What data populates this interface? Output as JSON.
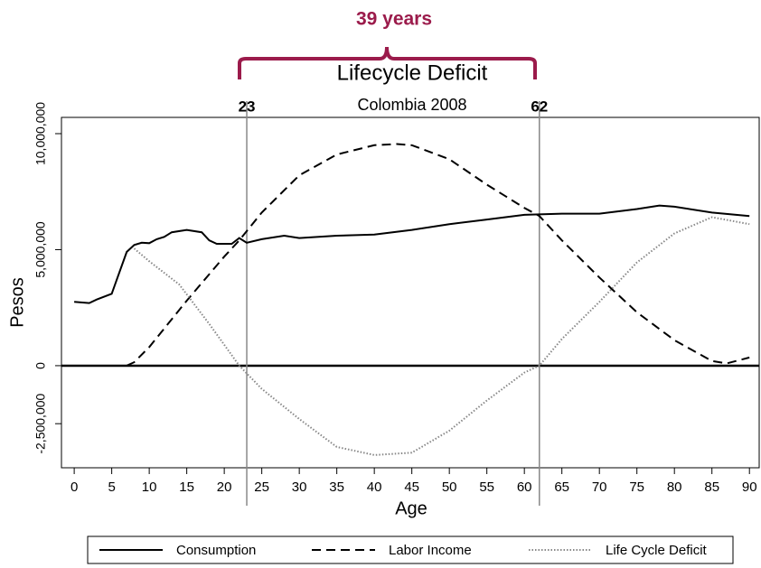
{
  "chart_data": {
    "type": "line",
    "title": "Lifecycle Deficit",
    "subtitle": "Colombia 2008",
    "annotation": "39 years",
    "annotation_color": "#9b1b4b",
    "vlines": [
      23,
      62
    ],
    "x_label": "Age",
    "y_label": "Pesos",
    "xlim": [
      -1.7,
      91.3
    ],
    "xticks": [
      0,
      5,
      10,
      15,
      20,
      25,
      30,
      35,
      40,
      45,
      50,
      55,
      60,
      65,
      70,
      75,
      80,
      85,
      90
    ],
    "ylim": [
      -4400000,
      10700000
    ],
    "yticks": [
      {
        "value": -2500000,
        "label": "-2,500,000"
      },
      0,
      {
        "value": 5000000,
        "label": "5,000,000"
      },
      {
        "value": 10000000,
        "label": "10,000,000"
      }
    ],
    "series": [
      {
        "name": "Consumption",
        "color": "#000000",
        "dash": "solid",
        "x": [
          0,
          2,
          3,
          5,
          7,
          8,
          9,
          10,
          11,
          12,
          13,
          15,
          17,
          18,
          19,
          21,
          22,
          23,
          25,
          28,
          30,
          35,
          40,
          45,
          50,
          55,
          60,
          65,
          70,
          75,
          78,
          80,
          85,
          90
        ],
        "values": [
          2750000,
          2700000,
          2850000,
          3100000,
          4900000,
          5200000,
          5300000,
          5280000,
          5450000,
          5550000,
          5750000,
          5850000,
          5750000,
          5400000,
          5250000,
          5250000,
          5500000,
          5300000,
          5450000,
          5600000,
          5500000,
          5600000,
          5650000,
          5850000,
          6100000,
          6300000,
          6500000,
          6550000,
          6550000,
          6750000,
          6900000,
          6850000,
          6600000,
          6450000
        ]
      },
      {
        "name": "Labor Income",
        "color": "#000000",
        "dash": "dashed",
        "x": [
          7,
          8,
          10,
          15,
          20,
          22,
          25,
          30,
          35,
          40,
          43,
          45,
          50,
          55,
          60,
          62,
          65,
          70,
          75,
          80,
          85,
          87,
          90
        ],
        "values": [
          0,
          150000,
          800000,
          2800000,
          4700000,
          5400000,
          6600000,
          8200000,
          9100000,
          9500000,
          9550000,
          9500000,
          8900000,
          7800000,
          6800000,
          6450000,
          5400000,
          3800000,
          2300000,
          1100000,
          200000,
          100000,
          350000
        ]
      },
      {
        "name": "Life Cycle Deficit",
        "color": "#888888",
        "dash": "dotted",
        "x": [
          8,
          10,
          14,
          18,
          22,
          25,
          30,
          35,
          40,
          45,
          50,
          55,
          60,
          62,
          65,
          70,
          75,
          80,
          85,
          90
        ],
        "values": [
          5050000,
          4500000,
          3500000,
          1800000,
          0,
          -1000000,
          -2300000,
          -3500000,
          -3850000,
          -3750000,
          -2800000,
          -1500000,
          -300000,
          0,
          1150000,
          2750000,
          4450000,
          5700000,
          6400000,
          6100000
        ]
      }
    ]
  }
}
